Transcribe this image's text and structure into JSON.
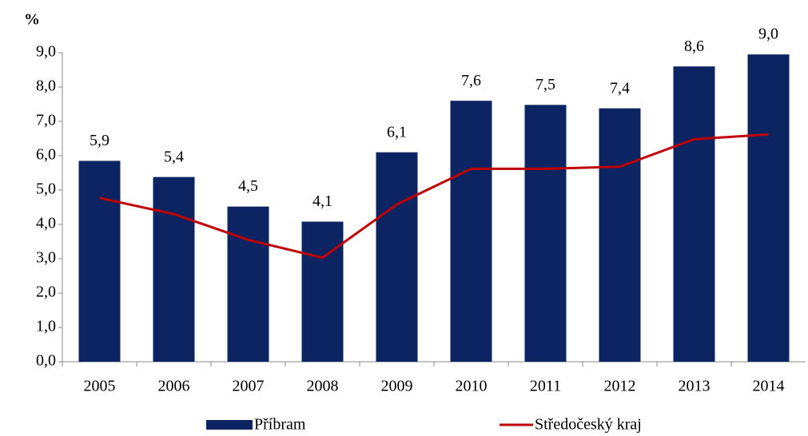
{
  "chart_data": {
    "type": "bar_line",
    "y_label": "%",
    "categories": [
      "2005",
      "2006",
      "2007",
      "2008",
      "2009",
      "2010",
      "2011",
      "2012",
      "2013",
      "2014"
    ],
    "series": [
      {
        "name": "Příbram",
        "type": "bar",
        "color": "#0c2461",
        "values": [
          5.85,
          5.38,
          4.52,
          4.08,
          6.1,
          7.6,
          7.48,
          7.38,
          8.6,
          8.95
        ],
        "value_labels": [
          "5,9",
          "5,4",
          "4,5",
          "4,1",
          "6,1",
          "7,6",
          "7,5",
          "7,4",
          "8,6",
          "9,0"
        ]
      },
      {
        "name": "Středočeský kraj",
        "type": "line",
        "color": "#c00000",
        "values": [
          4.77,
          4.3,
          3.55,
          3.03,
          4.58,
          5.62,
          5.62,
          5.68,
          6.48,
          6.62
        ]
      }
    ],
    "ylim": [
      0,
      9
    ],
    "yticks": [
      {
        "value": 0,
        "label": "0,0"
      },
      {
        "value": 1,
        "label": "1,0"
      },
      {
        "value": 2,
        "label": "2,0"
      },
      {
        "value": 3,
        "label": "3,0"
      },
      {
        "value": 4,
        "label": "4,0"
      },
      {
        "value": 5,
        "label": "5,0"
      },
      {
        "value": 6,
        "label": "6,0"
      },
      {
        "value": 7,
        "label": "7,0"
      },
      {
        "value": 8,
        "label": "8,0"
      },
      {
        "value": 9,
        "label": "9,0"
      }
    ],
    "legend": "bottom"
  }
}
